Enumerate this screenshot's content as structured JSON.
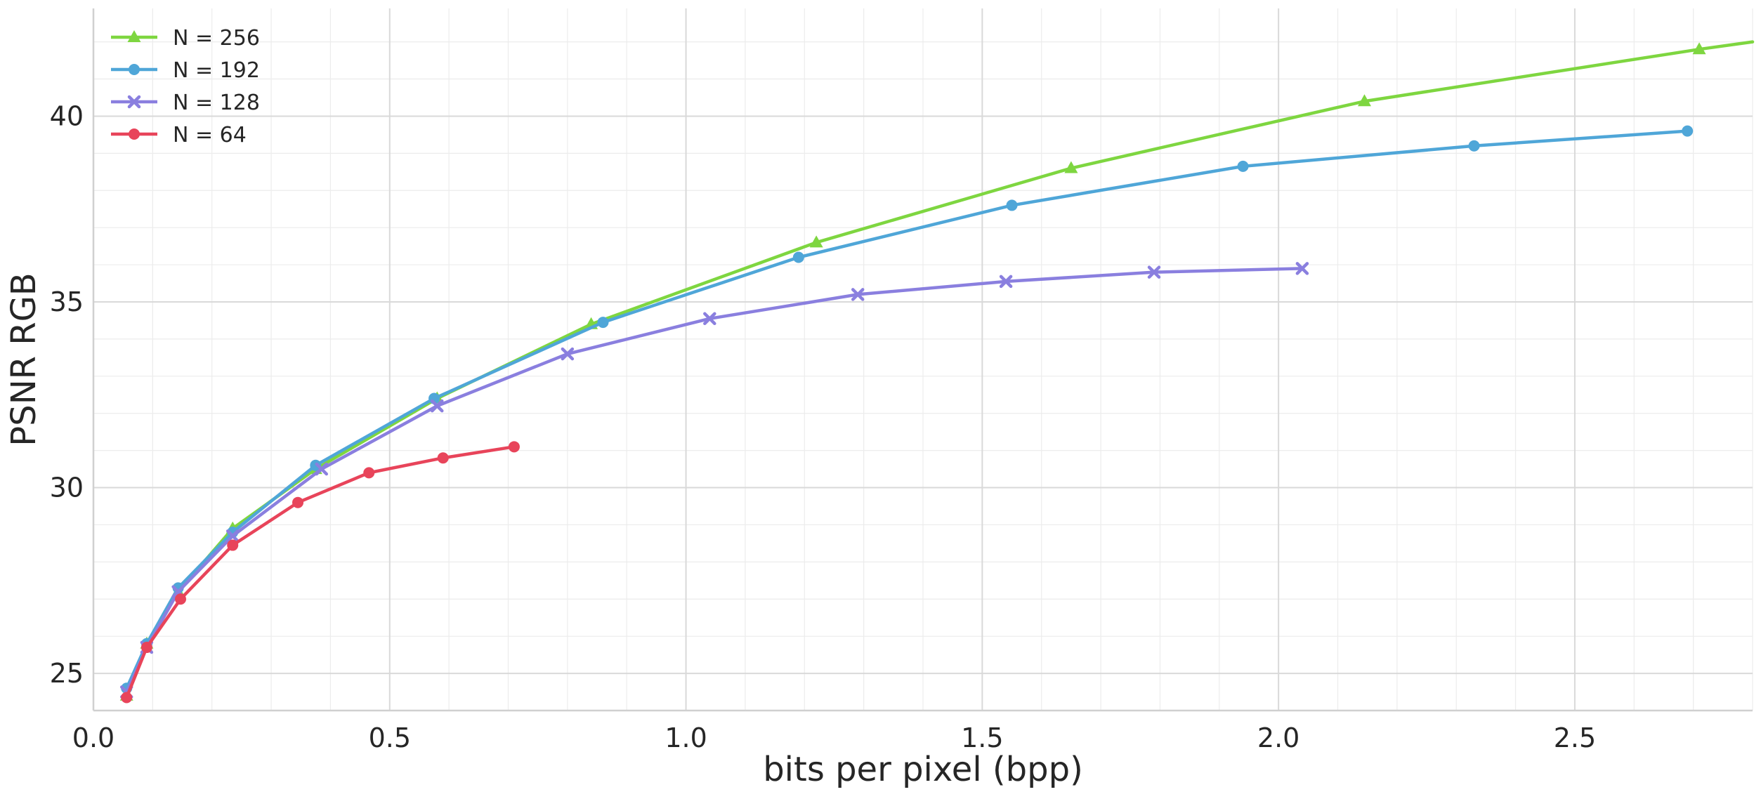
{
  "chart_data": {
    "type": "line",
    "title": "",
    "xlabel": "bits per pixel (bpp)",
    "ylabel": "PSNR RGB",
    "xlim": [
      0.0,
      2.8
    ],
    "ylim": [
      24.0,
      42.9
    ],
    "x_ticks": [
      0.0,
      0.5,
      1.0,
      1.5,
      2.0,
      2.5
    ],
    "x_tick_labels": [
      "0.0",
      "0.5",
      "1.0",
      "1.5",
      "2.0",
      "2.5"
    ],
    "y_ticks": [
      25,
      30,
      35,
      40
    ],
    "y_tick_labels": [
      "25",
      "30",
      "35",
      "40"
    ],
    "grid": true,
    "minor_grid": true,
    "legend_position": "top-left",
    "series": [
      {
        "name": "N = 256",
        "color": "#7ed640",
        "marker": "triangle",
        "x": [
          0.056,
          0.09,
          0.143,
          0.235,
          0.375,
          0.58,
          0.84,
          1.22,
          1.65,
          2.145,
          2.71,
          2.8
        ],
        "y": [
          24.4,
          25.8,
          27.2,
          28.9,
          30.5,
          32.4,
          34.4,
          36.6,
          38.6,
          40.4,
          41.8,
          42.0
        ]
      },
      {
        "name": "N = 192",
        "color": "#4fa6d8",
        "marker": "circle",
        "x": [
          0.056,
          0.09,
          0.143,
          0.235,
          0.375,
          0.575,
          0.86,
          1.19,
          1.55,
          1.94,
          2.33,
          2.69
        ],
        "y": [
          24.6,
          25.8,
          27.3,
          28.8,
          30.6,
          32.4,
          34.45,
          36.2,
          37.6,
          38.65,
          39.2,
          39.6
        ]
      },
      {
        "name": "N = 128",
        "color": "#8a7fdf",
        "marker": "x",
        "x": [
          0.056,
          0.09,
          0.143,
          0.235,
          0.385,
          0.58,
          0.8,
          1.04,
          1.29,
          1.54,
          1.79,
          2.04
        ],
        "y": [
          24.5,
          25.7,
          27.2,
          28.7,
          30.5,
          32.2,
          33.6,
          34.55,
          35.2,
          35.55,
          35.8,
          35.9
        ]
      },
      {
        "name": "N = 64",
        "color": "#e8445a",
        "marker": "circle",
        "x": [
          0.056,
          0.09,
          0.147,
          0.235,
          0.345,
          0.465,
          0.59,
          0.71
        ],
        "y": [
          24.35,
          25.7,
          27.0,
          28.45,
          29.6,
          30.4,
          30.8,
          31.1
        ]
      }
    ]
  }
}
